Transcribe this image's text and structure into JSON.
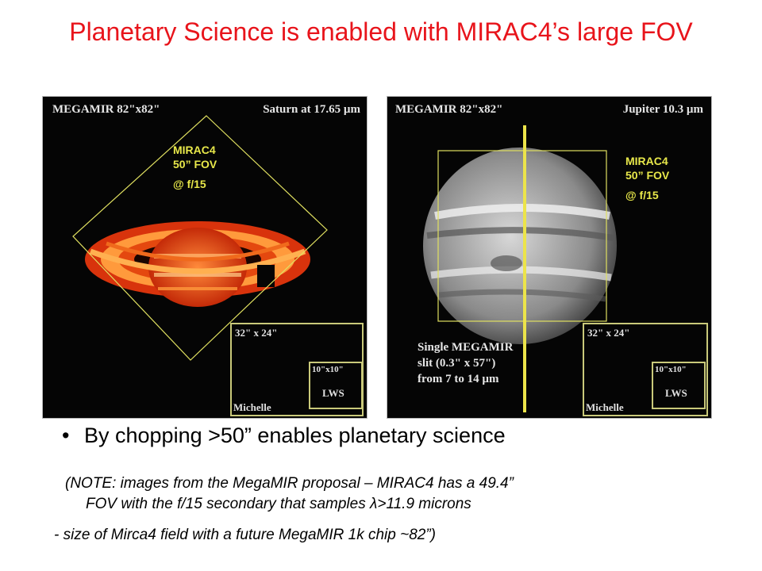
{
  "title": "Planetary Science is enabled with MIRAC4’s large FOV",
  "left_panel": {
    "header_left": "MEGAMIR 82\"x82\"",
    "header_right": "Saturn at 17.65 µm",
    "fov_line1": "MIRAC4",
    "fov_line2": "50” FOV",
    "fov_line3": "@ f/15",
    "michelle_box": "32\" x 24\"",
    "michelle_label": "Michelle",
    "lws_box": "10\"x10\"",
    "lws_label": "LWS"
  },
  "right_panel": {
    "header_left": "MEGAMIR 82\"x82\"",
    "header_right": "Jupiter 10.3 µm",
    "fov_line1": "MIRAC4",
    "fov_line2": "50” FOV",
    "fov_line3": "@ f/15",
    "slit_line1": "Single MEGAMIR",
    "slit_line2": "slit (0.3\" x 57\")",
    "slit_line3": "from 7 to 14 µm",
    "michelle_box": "32\" x 24\"",
    "michelle_label": "Michelle",
    "lws_box": "10\"x10\"",
    "lws_label": "LWS"
  },
  "bullet": "By chopping >50” enables planetary science",
  "note_line1": "(NOTE: images from the MegaMIR proposal – MIRAC4 has a 49.4”",
  "note_line2": "FOV with the f/15 secondary that samples λ>11.9 microns",
  "note_line3": "- size of Mirca4 field with a future MegaMIR 1k chip ~82”)",
  "colors": {
    "title": "#e8141b",
    "fov_label": "#e8e84a"
  }
}
